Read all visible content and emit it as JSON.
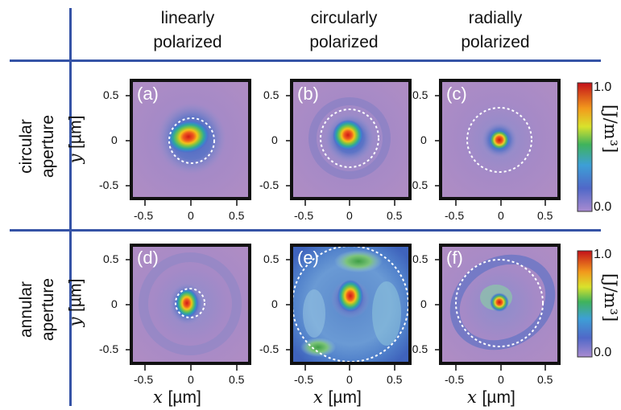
{
  "columns": [
    {
      "line1": "linearly",
      "line2": "polarized"
    },
    {
      "line1": "circularly",
      "line2": "polarized"
    },
    {
      "line1": "radially",
      "line2": "polarized"
    }
  ],
  "rows": [
    {
      "line1": "circular",
      "line2": "aperture"
    },
    {
      "line1": "annular",
      "line2": "aperture"
    }
  ],
  "panels": [
    "(a)",
    "(b)",
    "(c)",
    "(d)",
    "(e)",
    "(f)"
  ],
  "axes": {
    "x_var": "x",
    "y_var": "y",
    "unit": "[µm]",
    "ticks": [
      "-0.5",
      "0",
      "0.5"
    ]
  },
  "colorbar": {
    "max_label": "1.0",
    "min_label": "0.0",
    "title": "[J/m³]"
  },
  "colors": {
    "divider": "#3553a6",
    "background_field": "#a987c4",
    "spot_core": "#d7301f",
    "ring": "#ffffff"
  }
}
